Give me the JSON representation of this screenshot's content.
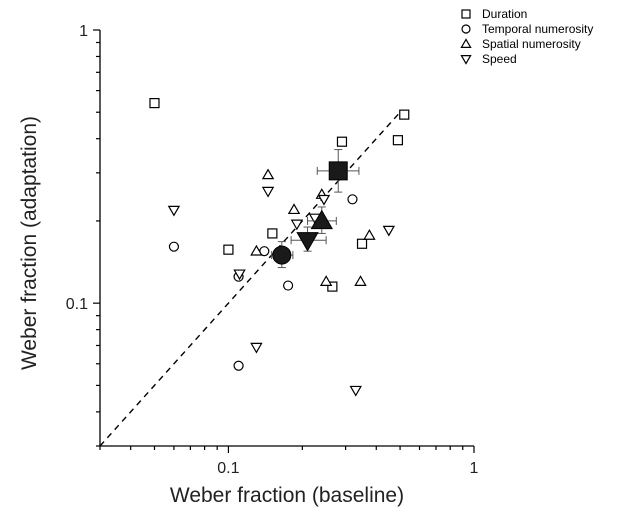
{
  "chart_data": {
    "type": "scatter",
    "xlabel": "Weber fraction (baseline)",
    "ylabel": "Weber fraction (adaptation)",
    "xscale": "log",
    "yscale": "log",
    "xlim": [
      0.03,
      1
    ],
    "ylim": [
      0.03,
      1
    ],
    "x_ticks": [
      0.1,
      1
    ],
    "y_ticks": [
      0.1,
      1
    ],
    "x_tick_labels": [
      "0.1",
      "1"
    ],
    "y_tick_labels": [
      "0.1",
      "1"
    ],
    "grid": false,
    "identity_line": true,
    "legend_placement": "top-right",
    "series": [
      {
        "name": "Duration",
        "marker": "square",
        "points": [
          [
            0.05,
            0.54
          ],
          [
            0.1,
            0.157
          ],
          [
            0.151,
            0.18
          ],
          [
            0.29,
            0.39
          ],
          [
            0.265,
            0.115
          ],
          [
            0.35,
            0.165
          ],
          [
            0.49,
            0.395
          ],
          [
            0.52,
            0.49
          ]
        ],
        "mean": {
          "x": 0.28,
          "y": 0.305,
          "xerr": [
            0.05,
            0.06
          ],
          "yerr": [
            0.05,
            0.06
          ]
        }
      },
      {
        "name": "Temporal numerosity",
        "marker": "circle",
        "points": [
          [
            0.06,
            0.161
          ],
          [
            0.11,
            0.125
          ],
          [
            0.175,
            0.116
          ],
          [
            0.11,
            0.059
          ],
          [
            0.32,
            0.24
          ],
          [
            0.14,
            0.155
          ]
        ],
        "mean": {
          "x": 0.165,
          "y": 0.15,
          "xerr": [
            0.015,
            0.018
          ],
          "yerr": [
            0.015,
            0.018
          ]
        }
      },
      {
        "name": "Spatial numerosity",
        "marker": "triangle-up",
        "points": [
          [
            0.13,
            0.155
          ],
          [
            0.145,
            0.295
          ],
          [
            0.185,
            0.22
          ],
          [
            0.24,
            0.25
          ],
          [
            0.25,
            0.12
          ],
          [
            0.345,
            0.12
          ],
          [
            0.375,
            0.177
          ]
        ],
        "mean": {
          "x": 0.24,
          "y": 0.2,
          "xerr": [
            0.03,
            0.035
          ],
          "yerr": [
            0.02,
            0.025
          ]
        }
      },
      {
        "name": "Speed",
        "marker": "triangle-down",
        "points": [
          [
            0.06,
            0.219
          ],
          [
            0.111,
            0.128
          ],
          [
            0.13,
            0.069
          ],
          [
            0.145,
            0.257
          ],
          [
            0.19,
            0.195
          ],
          [
            0.225,
            0.205
          ],
          [
            0.245,
            0.24
          ],
          [
            0.33,
            0.048
          ],
          [
            0.45,
            0.185
          ]
        ],
        "mean": {
          "x": 0.21,
          "y": 0.17,
          "xerr": [
            0.03,
            0.04
          ],
          "yerr": [
            0.015,
            0.02
          ]
        }
      }
    ]
  }
}
